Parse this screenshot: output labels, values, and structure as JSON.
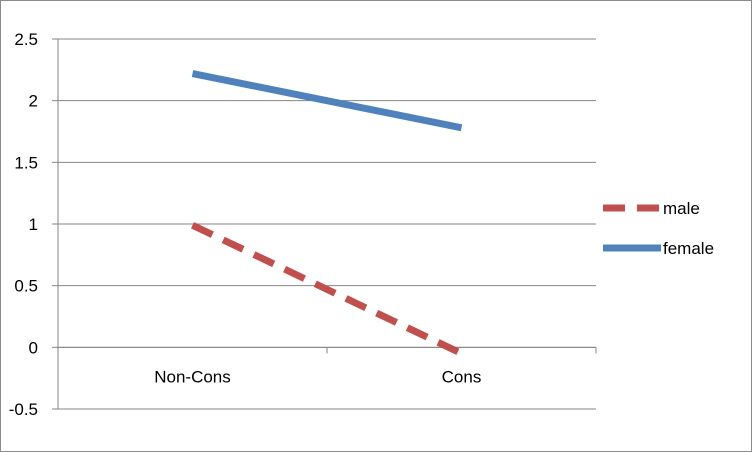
{
  "chart_data": {
    "type": "line",
    "categories": [
      "Non-Cons",
      "Cons"
    ],
    "series": [
      {
        "name": "male",
        "values": [
          0.99,
          -0.05
        ],
        "color": "#c0504d",
        "style": "dashed"
      },
      {
        "name": "female",
        "values": [
          2.22,
          1.78
        ],
        "color": "#4f81bd",
        "style": "solid"
      }
    ],
    "ylim": [
      -0.5,
      2.5
    ],
    "yticks": [
      "-0.5",
      "0",
      "0.5",
      "1",
      "1.5",
      "2",
      "2.5"
    ],
    "grid": true,
    "legend": "right",
    "title": "",
    "xlabel": "",
    "ylabel": ""
  }
}
